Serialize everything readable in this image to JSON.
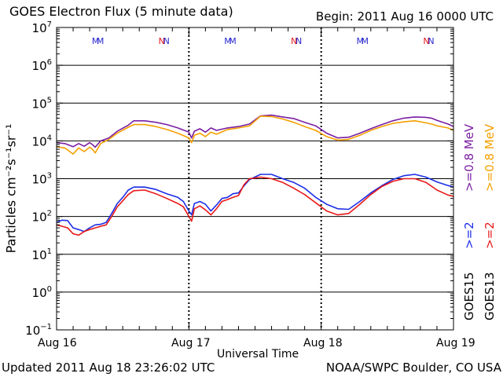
{
  "header": {
    "title": "GOES Electron Flux (5 minute data)",
    "begin": "Begin: 2011 Aug 16 0000 UTC"
  },
  "footer": {
    "updated": "Updated 2011 Aug 18 23:26:02 UTC",
    "credit": "NOAA/SWPC Boulder, CO USA"
  },
  "axis": {
    "xlabel": "Universal Time",
    "ylabel": "Particles cm⁻²s⁻¹sr⁻¹",
    "y_exponents": [
      "7",
      "6",
      "5",
      "4",
      "3",
      "2",
      "1",
      "0",
      "−1"
    ],
    "x_ticks": [
      "Aug 16",
      "Aug 17",
      "Aug 18",
      "Aug 19"
    ]
  },
  "legend": {
    "goes15": {
      "sat": "GOES15",
      "low": ">=2",
      "high": ">=0.8 MeV"
    },
    "goes13": {
      "sat": "GOES13",
      "low": ">=2",
      "high": ">=0.8 MeV"
    }
  },
  "colors": {
    "goes15_high": "#7a1fa2",
    "goes13_high": "#f5a000",
    "goes15_low": "#1c2ee6",
    "goes13_low": "#e81818",
    "marker_m": "#2a2ad0",
    "marker_n": "#2a2ad0",
    "marker_n_accent": "#e81818"
  },
  "chart_data": {
    "type": "line",
    "title": "GOES Electron Flux (5 minute data)",
    "xlabel": "Universal Time",
    "ylabel": "Particles cm^-2 s^-1 sr^-1",
    "y_scale": "log",
    "ylim": [
      0.1,
      10000000
    ],
    "x_unit": "hours since 2011 Aug 16 0000 UTC",
    "xlim": [
      0,
      72
    ],
    "x_tick_hours": [
      0,
      24,
      48,
      72
    ],
    "day_boundaries": [
      24,
      48
    ],
    "threshold": 1000,
    "grid": true,
    "markers": [
      {
        "label": "M",
        "x": 7.5
      },
      {
        "label": "N",
        "x": 19.5
      },
      {
        "label": "M",
        "x": 31.5
      },
      {
        "label": "N",
        "x": 43.5
      },
      {
        "label": "M",
        "x": 55.5
      },
      {
        "label": "N",
        "x": 67.5
      }
    ],
    "series": [
      {
        "name": "GOES15 >=0.8 MeV",
        "color": "#7a1fa2",
        "x": [
          0,
          1.5,
          3,
          4,
          5,
          6,
          6.5,
          7,
          8,
          9.5,
          11,
          13,
          14,
          16,
          18,
          20,
          22,
          24,
          24.5,
          25,
          26,
          27,
          28,
          29,
          31,
          33,
          35,
          37,
          39,
          41,
          43,
          45,
          47,
          49,
          51,
          53,
          55,
          57,
          59,
          61,
          63,
          65,
          67,
          68,
          69,
          71,
          72
        ],
        "values": [
          9000,
          8500,
          7000,
          8500,
          7200,
          9000,
          8000,
          6800,
          10000,
          12000,
          18000,
          26000,
          34000,
          34000,
          31000,
          27000,
          22000,
          17000,
          12000,
          18000,
          21000,
          17000,
          22000,
          19000,
          22000,
          24000,
          28000,
          46000,
          48000,
          43000,
          39000,
          31000,
          25000,
          16000,
          12000,
          12500,
          16000,
          21000,
          27000,
          34000,
          40000,
          43000,
          42000,
          40000,
          35000,
          28000,
          24000
        ]
      },
      {
        "name": "GOES13 >=0.8 MeV",
        "color": "#f5a000",
        "x": [
          0,
          1.5,
          3,
          4,
          5,
          6,
          6.5,
          7,
          8,
          9.5,
          11,
          13,
          14,
          16,
          18,
          20,
          22,
          24,
          24.5,
          25,
          26,
          27,
          28,
          29,
          31,
          33,
          35,
          37,
          39,
          41,
          43,
          45,
          47,
          49,
          51,
          53,
          55,
          57,
          59,
          61,
          63,
          65,
          67,
          68,
          69,
          71,
          72
        ],
        "values": [
          7000,
          6500,
          4500,
          6500,
          5200,
          6800,
          6000,
          4800,
          8500,
          11000,
          16000,
          23000,
          27000,
          27000,
          24000,
          20000,
          16000,
          12000,
          9000,
          14000,
          16000,
          13000,
          17000,
          15000,
          20000,
          22000,
          25000,
          45000,
          44000,
          38000,
          31000,
          24000,
          19000,
          13000,
          10500,
          11000,
          14000,
          19000,
          24000,
          29000,
          32000,
          34000,
          30000,
          28000,
          25000,
          22000,
          19000
        ]
      },
      {
        "name": "GOES15 >=2 MeV",
        "color": "#1c2ee6",
        "x": [
          0,
          1,
          2,
          3,
          4,
          5,
          6,
          7,
          8,
          9,
          10,
          11,
          12,
          13,
          14,
          16,
          18,
          20,
          22,
          23,
          24,
          24.5,
          25,
          26,
          27,
          28,
          29,
          30,
          31,
          32,
          33,
          34,
          35,
          37,
          39,
          41,
          43,
          45,
          47,
          49,
          51,
          53,
          55,
          57,
          59,
          61,
          63,
          65,
          67,
          69,
          71,
          72
        ],
        "values": [
          70,
          80,
          78,
          50,
          45,
          40,
          50,
          60,
          62,
          70,
          120,
          220,
          320,
          500,
          600,
          600,
          520,
          400,
          320,
          250,
          140,
          110,
          220,
          250,
          210,
          140,
          200,
          300,
          320,
          400,
          420,
          650,
          950,
          1300,
          1300,
          1000,
          800,
          560,
          320,
          210,
          160,
          155,
          250,
          420,
          650,
          950,
          1200,
          1300,
          1100,
          820,
          660,
          600
        ]
      },
      {
        "name": "GOES13 >=2 MeV",
        "color": "#e81818",
        "x": [
          0,
          1,
          2,
          3,
          4,
          5,
          6,
          7,
          8,
          9,
          10,
          11,
          12,
          13,
          14,
          16,
          18,
          20,
          22,
          23,
          24,
          24.5,
          25,
          26,
          27,
          28,
          29,
          30,
          31,
          32,
          33,
          34,
          35,
          37,
          39,
          41,
          43,
          45,
          47,
          49,
          51,
          53,
          55,
          57,
          59,
          61,
          63,
          65,
          67,
          69,
          71,
          72
        ],
        "values": [
          60,
          55,
          50,
          35,
          32,
          40,
          45,
          50,
          55,
          60,
          100,
          180,
          260,
          380,
          480,
          500,
          400,
          300,
          220,
          180,
          100,
          75,
          160,
          190,
          150,
          110,
          160,
          250,
          280,
          320,
          360,
          700,
          1000,
          1100,
          1000,
          800,
          560,
          380,
          230,
          140,
          110,
          120,
          210,
          380,
          620,
          850,
          1000,
          1000,
          800,
          500,
          370,
          340
        ]
      }
    ]
  }
}
